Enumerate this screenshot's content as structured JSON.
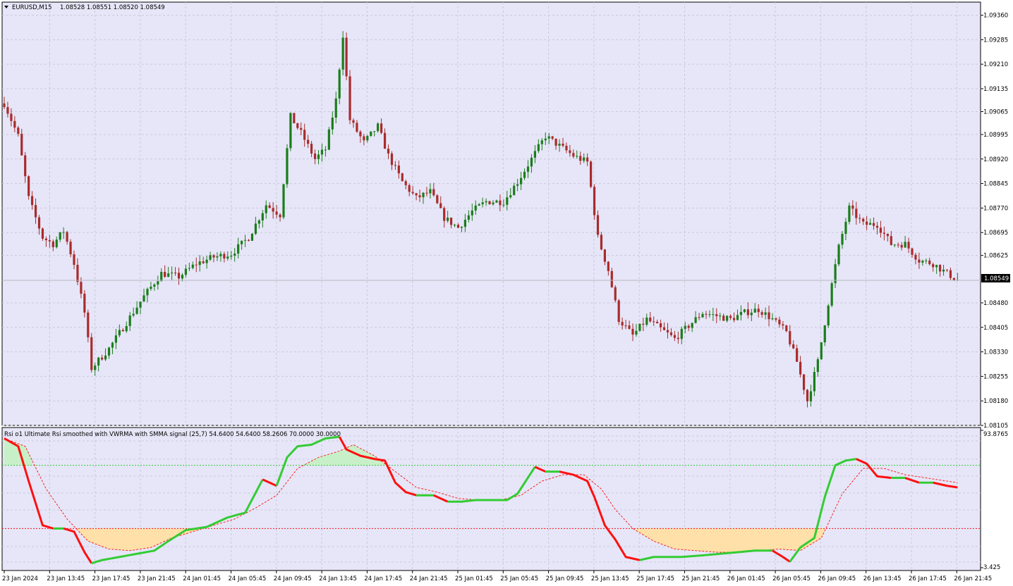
{
  "main_pane": {
    "title": "EURUSD,M15",
    "ohlc": "1.08528 1.08551 1.08520 1.08549",
    "current_price": "1.08549",
    "price_ticks": [
      "1.09360",
      "1.09285",
      "1.09210",
      "1.09135",
      "1.09065",
      "1.08995",
      "1.08920",
      "1.08845",
      "1.08770",
      "1.08695",
      "1.08625",
      "1.08549",
      "1.08480",
      "1.08405",
      "1.08330",
      "1.08255",
      "1.08180",
      "1.08105"
    ]
  },
  "indicator_pane": {
    "title": "Rsi o1 Ultimate Rsi smoothed with VWRMA with SMMA signal (25,7) 54.6400 54.6400 58.2606 70.0000 30.0000",
    "max_label": "93.8765",
    "min_label": "3.425",
    "upper_level": 70,
    "lower_level": 30
  },
  "time_labels": [
    "23 Jan 2024",
    "23 Jan 13:45",
    "23 Jan 17:45",
    "23 Jan 21:45",
    "24 Jan 01:45",
    "24 Jan 05:45",
    "24 Jan 09:45",
    "24 Jan 13:45",
    "24 Jan 17:45",
    "24 Jan 21:45",
    "25 Jan 01:45",
    "25 Jan 05:45",
    "25 Jan 09:45",
    "25 Jan 13:45",
    "25 Jan 17:45",
    "25 Jan 21:45",
    "26 Jan 01:45",
    "26 Jan 05:45",
    "26 Jan 09:45",
    "26 Jan 13:45",
    "26 Jan 17:45",
    "26 Jan 21:45"
  ],
  "colors": {
    "background": "#e6e6f8",
    "bull": "#1a7d1a",
    "bear": "#a92b2b",
    "rsi_up": "#33cc33",
    "rsi_down": "#ff1010",
    "signal": "#ff1010",
    "overbought_fill": "#c8f0c8",
    "oversold_fill": "#ffe0a8",
    "upper_level_line": "#33cc33",
    "lower_level_line": "#ff1010"
  },
  "chart_data": [
    {
      "type": "candlestick",
      "symbol": "EURUSD",
      "timeframe": "M15",
      "ylim": [
        1.08105,
        1.094
      ],
      "y_ticks": [
        1.0936,
        1.09285,
        1.0921,
        1.09135,
        1.09065,
        1.08995,
        1.0892,
        1.08845,
        1.0877,
        1.08695,
        1.08625,
        1.0848,
        1.08405,
        1.0833,
        1.08255,
        1.0818,
        1.08105
      ],
      "last_price": 1.08549,
      "close_path": [
        [
          0,
          1.0909
        ],
        [
          4,
          1.0899
        ],
        [
          7,
          1.088
        ],
        [
          11,
          1.0868
        ],
        [
          14,
          1.0866
        ],
        [
          17,
          1.087
        ],
        [
          20,
          1.086
        ],
        [
          23,
          1.0845
        ],
        [
          25,
          1.0828
        ],
        [
          30,
          1.0834
        ],
        [
          35,
          1.0842
        ],
        [
          40,
          1.085
        ],
        [
          45,
          1.0857
        ],
        [
          50,
          1.0856
        ],
        [
          55,
          1.086
        ],
        [
          60,
          1.0862
        ],
        [
          65,
          1.0863
        ],
        [
          70,
          1.0868
        ],
        [
          75,
          1.0878
        ],
        [
          79,
          1.0875
        ],
        [
          82,
          1.0905
        ],
        [
          85,
          1.09
        ],
        [
          89,
          1.0892
        ],
        [
          92,
          1.0895
        ],
        [
          95,
          1.091
        ],
        [
          97,
          1.093
        ],
        [
          99,
          1.0904
        ],
        [
          103,
          1.0897
        ],
        [
          107,
          1.0902
        ],
        [
          110,
          1.0893
        ],
        [
          114,
          1.0885
        ],
        [
          118,
          1.088
        ],
        [
          122,
          1.0882
        ],
        [
          126,
          1.0874
        ],
        [
          130,
          1.0871
        ],
        [
          134,
          1.0876
        ],
        [
          138,
          1.0879
        ],
        [
          143,
          1.0879
        ],
        [
          147,
          1.0885
        ],
        [
          151,
          1.0892
        ],
        [
          155,
          1.0899
        ],
        [
          159,
          1.0896
        ],
        [
          163,
          1.0893
        ],
        [
          167,
          1.0891
        ],
        [
          170,
          1.0868
        ],
        [
          173,
          1.0858
        ],
        [
          176,
          1.0843
        ],
        [
          180,
          1.0838
        ],
        [
          184,
          1.0843
        ],
        [
          188,
          1.084
        ],
        [
          192,
          1.0837
        ],
        [
          196,
          1.0841
        ],
        [
          200,
          1.0845
        ],
        [
          204,
          1.0844
        ],
        [
          208,
          1.0843
        ],
        [
          212,
          1.0845
        ],
        [
          216,
          1.0846
        ],
        [
          220,
          1.0843
        ],
        [
          224,
          1.0839
        ],
        [
          227,
          1.083
        ],
        [
          230,
          1.0818
        ],
        [
          233,
          1.083
        ],
        [
          236,
          1.0848
        ],
        [
          239,
          1.0865
        ],
        [
          242,
          1.0877
        ],
        [
          246,
          1.0872
        ],
        [
          250,
          1.0872
        ],
        [
          254,
          1.0866
        ],
        [
          258,
          1.0866
        ],
        [
          262,
          1.0861
        ],
        [
          266,
          1.086
        ],
        [
          270,
          1.0857
        ],
        [
          273,
          1.0855
        ]
      ]
    },
    {
      "type": "line",
      "title": "Rsi o1 Ultimate Rsi smoothed with VWRMA with SMMA signal (25,7)",
      "ylim": [
        3.425,
        93.8765
      ],
      "levels": [
        70,
        30
      ],
      "series": [
        {
          "name": "Rsi o1 Ultimate Rsi smoothed with VWRMA",
          "role": "rsi",
          "points": [
            [
              0,
              87
            ],
            [
              4,
              82
            ],
            [
              7,
              60
            ],
            [
              11,
              32
            ],
            [
              14,
              30
            ],
            [
              17,
              30
            ],
            [
              20,
              28
            ],
            [
              23,
              15
            ],
            [
              25,
              8
            ],
            [
              28,
              10
            ],
            [
              33,
              12
            ],
            [
              38,
              14
            ],
            [
              43,
              16
            ],
            [
              47,
              22
            ],
            [
              52,
              29
            ],
            [
              58,
              31
            ],
            [
              64,
              37
            ],
            [
              69,
              40
            ],
            [
              74,
              61
            ],
            [
              78,
              57
            ],
            [
              81,
              75
            ],
            [
              84,
              82
            ],
            [
              88,
              83
            ],
            [
              92,
              87
            ],
            [
              96,
              88
            ],
            [
              98,
              80
            ],
            [
              102,
              76
            ],
            [
              106,
              74
            ],
            [
              109,
              73
            ],
            [
              112,
              59
            ],
            [
              115,
              53
            ],
            [
              118,
              51
            ],
            [
              123,
              51
            ],
            [
              127,
              47
            ],
            [
              131,
              47
            ],
            [
              135,
              48
            ],
            [
              140,
              48
            ],
            [
              144,
              48
            ],
            [
              147,
              52
            ],
            [
              152,
              69
            ],
            [
              155,
              66
            ],
            [
              159,
              66
            ],
            [
              163,
              64
            ],
            [
              167,
              60
            ],
            [
              169,
              50
            ],
            [
              172,
              32
            ],
            [
              175,
              23
            ],
            [
              178,
              12
            ],
            [
              182,
              10
            ],
            [
              186,
              12
            ],
            [
              190,
              12
            ],
            [
              194,
              12
            ],
            [
              200,
              13
            ],
            [
              205,
              14
            ],
            [
              210,
              15
            ],
            [
              215,
              16
            ],
            [
              220,
              16
            ],
            [
              223,
              12
            ],
            [
              225,
              9
            ],
            [
              228,
              18
            ],
            [
              232,
              24
            ],
            [
              235,
              50
            ],
            [
              238,
              70
            ],
            [
              241,
              73
            ],
            [
              244,
              74
            ],
            [
              247,
              71
            ],
            [
              250,
              63
            ],
            [
              254,
              62
            ],
            [
              258,
              62
            ],
            [
              262,
              59
            ],
            [
              266,
              59
            ],
            [
              270,
              57
            ],
            [
              273,
              56
            ]
          ]
        },
        {
          "name": "SMMA signal",
          "role": "signal",
          "points": [
            [
              0,
              87
            ],
            [
              6,
              82
            ],
            [
              12,
              55
            ],
            [
              18,
              36
            ],
            [
              24,
              22
            ],
            [
              30,
              17
            ],
            [
              36,
              16
            ],
            [
              42,
              18
            ],
            [
              48,
              24
            ],
            [
              54,
              28
            ],
            [
              60,
              32
            ],
            [
              66,
              36
            ],
            [
              72,
              43
            ],
            [
              78,
              51
            ],
            [
              84,
              68
            ],
            [
              90,
              75
            ],
            [
              96,
              79
            ],
            [
              100,
              83
            ],
            [
              106,
              76
            ],
            [
              112,
              66
            ],
            [
              118,
              56
            ],
            [
              124,
              53
            ],
            [
              130,
              49
            ],
            [
              136,
              48
            ],
            [
              142,
              48
            ],
            [
              148,
              51
            ],
            [
              154,
              60
            ],
            [
              160,
              64
            ],
            [
              166,
              64
            ],
            [
              171,
              55
            ],
            [
              175,
              42
            ],
            [
              180,
              30
            ],
            [
              186,
              22
            ],
            [
              192,
              17
            ],
            [
              198,
              16
            ],
            [
              204,
              15
            ],
            [
              210,
              15
            ],
            [
              216,
              16
            ],
            [
              222,
              17
            ],
            [
              228,
              16
            ],
            [
              234,
              24
            ],
            [
              240,
              52
            ],
            [
              246,
              68
            ],
            [
              252,
              68
            ],
            [
              258,
              64
            ],
            [
              264,
              62
            ],
            [
              270,
              60
            ],
            [
              273,
              59
            ]
          ]
        }
      ]
    }
  ]
}
